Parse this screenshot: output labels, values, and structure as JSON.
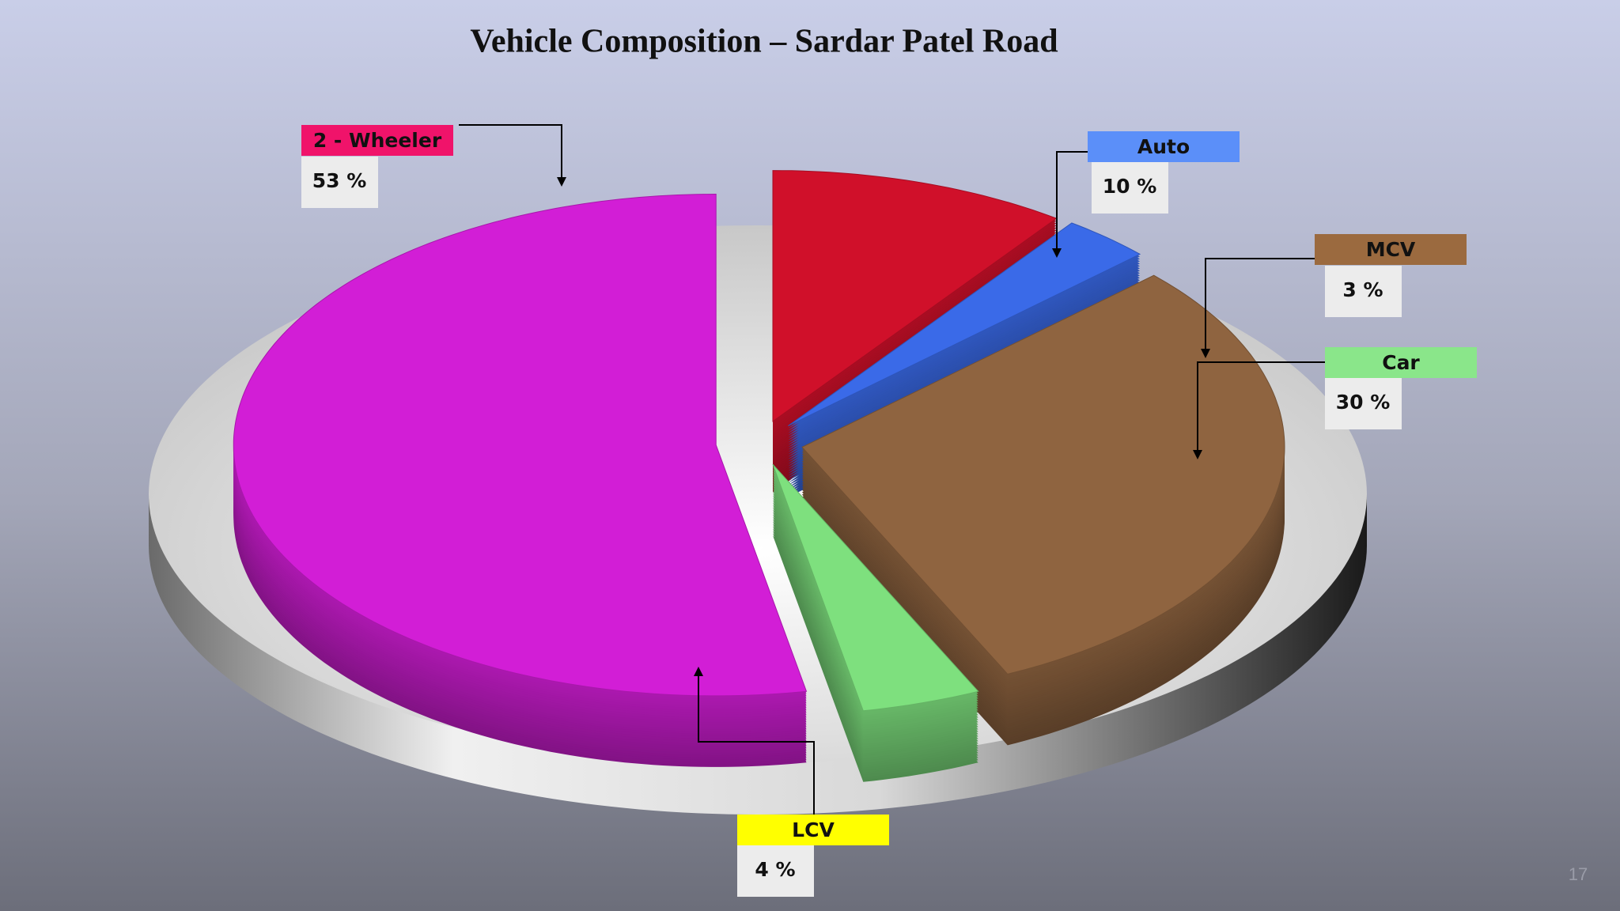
{
  "chart_data": {
    "type": "pie",
    "title": "Vehicle Composition – Sardar Patel Road",
    "categories": [
      "2 - Wheeler",
      "Auto",
      "MCV",
      "Car",
      "LCV"
    ],
    "values": [
      53,
      10,
      3,
      30,
      4
    ],
    "value_labels": [
      "53 %",
      "10 %",
      "3 %",
      "30 %",
      "4 %"
    ],
    "colors": [
      "#d21ed6",
      "#d0102a",
      "#3a6ae8",
      "#8f6440",
      "#7ee07e"
    ],
    "label_colors": [
      "#f0136a",
      "#5b8ff9",
      "#9b6a3f",
      "#8ae68a",
      "#ffff00"
    ]
  },
  "slide_number": "17"
}
